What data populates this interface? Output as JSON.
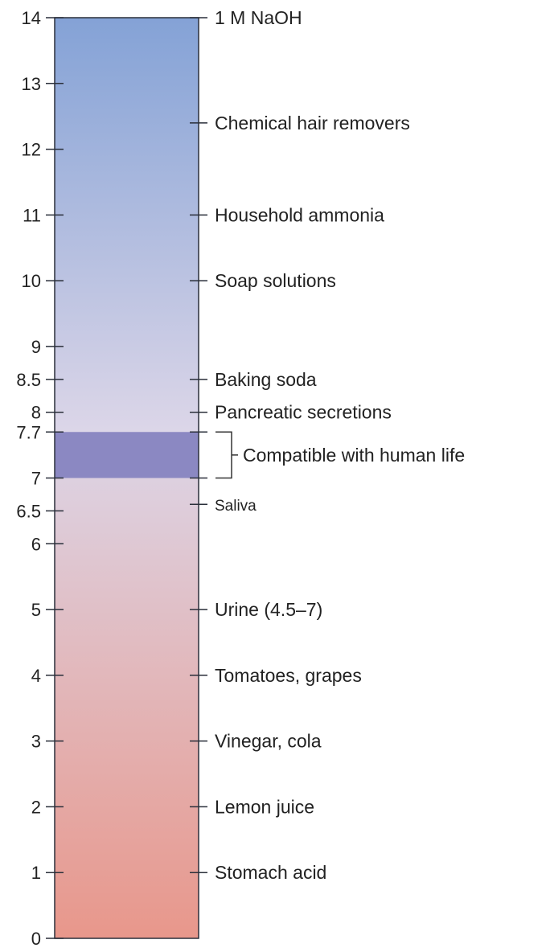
{
  "scale": {
    "min": 0,
    "max": 14,
    "left_ticks": [
      {
        "value": 14,
        "label": "14"
      },
      {
        "value": 13,
        "label": "13"
      },
      {
        "value": 12,
        "label": "12"
      },
      {
        "value": 11,
        "label": "11"
      },
      {
        "value": 10,
        "label": "10"
      },
      {
        "value": 9,
        "label": "9"
      },
      {
        "value": 8.5,
        "label": "8.5"
      },
      {
        "value": 8,
        "label": "8"
      },
      {
        "value": 7.7,
        "label": "7.7"
      },
      {
        "value": 7,
        "label": "7"
      },
      {
        "value": 6.5,
        "label": "6.5"
      },
      {
        "value": 6,
        "label": "6"
      },
      {
        "value": 5,
        "label": "5"
      },
      {
        "value": 4,
        "label": "4"
      },
      {
        "value": 3,
        "label": "3"
      },
      {
        "value": 2,
        "label": "2"
      },
      {
        "value": 1,
        "label": "1"
      },
      {
        "value": 0,
        "label": "0"
      }
    ],
    "colors": {
      "base": "#84a2d6",
      "neutral": "#dcd6e8",
      "acid": "#e8978b",
      "band": "#8b88c2",
      "outline": "#2a2f3a"
    }
  },
  "substances": [
    {
      "value": 14,
      "label": "1 M NaOH"
    },
    {
      "value": 12.4,
      "label": "Chemical hair removers"
    },
    {
      "value": 11,
      "label": "Household ammonia"
    },
    {
      "value": 10,
      "label": "Soap solutions"
    },
    {
      "value": 8.5,
      "label": "Baking soda"
    },
    {
      "value": 8,
      "label": "Pancreatic secretions"
    },
    {
      "value": 6.6,
      "label": "Saliva",
      "small": true
    },
    {
      "value": 5,
      "label": "Urine (4.5–7)"
    },
    {
      "value": 4,
      "label": "Tomatoes, grapes"
    },
    {
      "value": 3,
      "label": "Vinegar, cola"
    },
    {
      "value": 2,
      "label": "Lemon juice"
    },
    {
      "value": 1,
      "label": "Stomach acid"
    }
  ],
  "human_range": {
    "low": 7,
    "high": 7.7,
    "label": "Compatible with human life"
  }
}
